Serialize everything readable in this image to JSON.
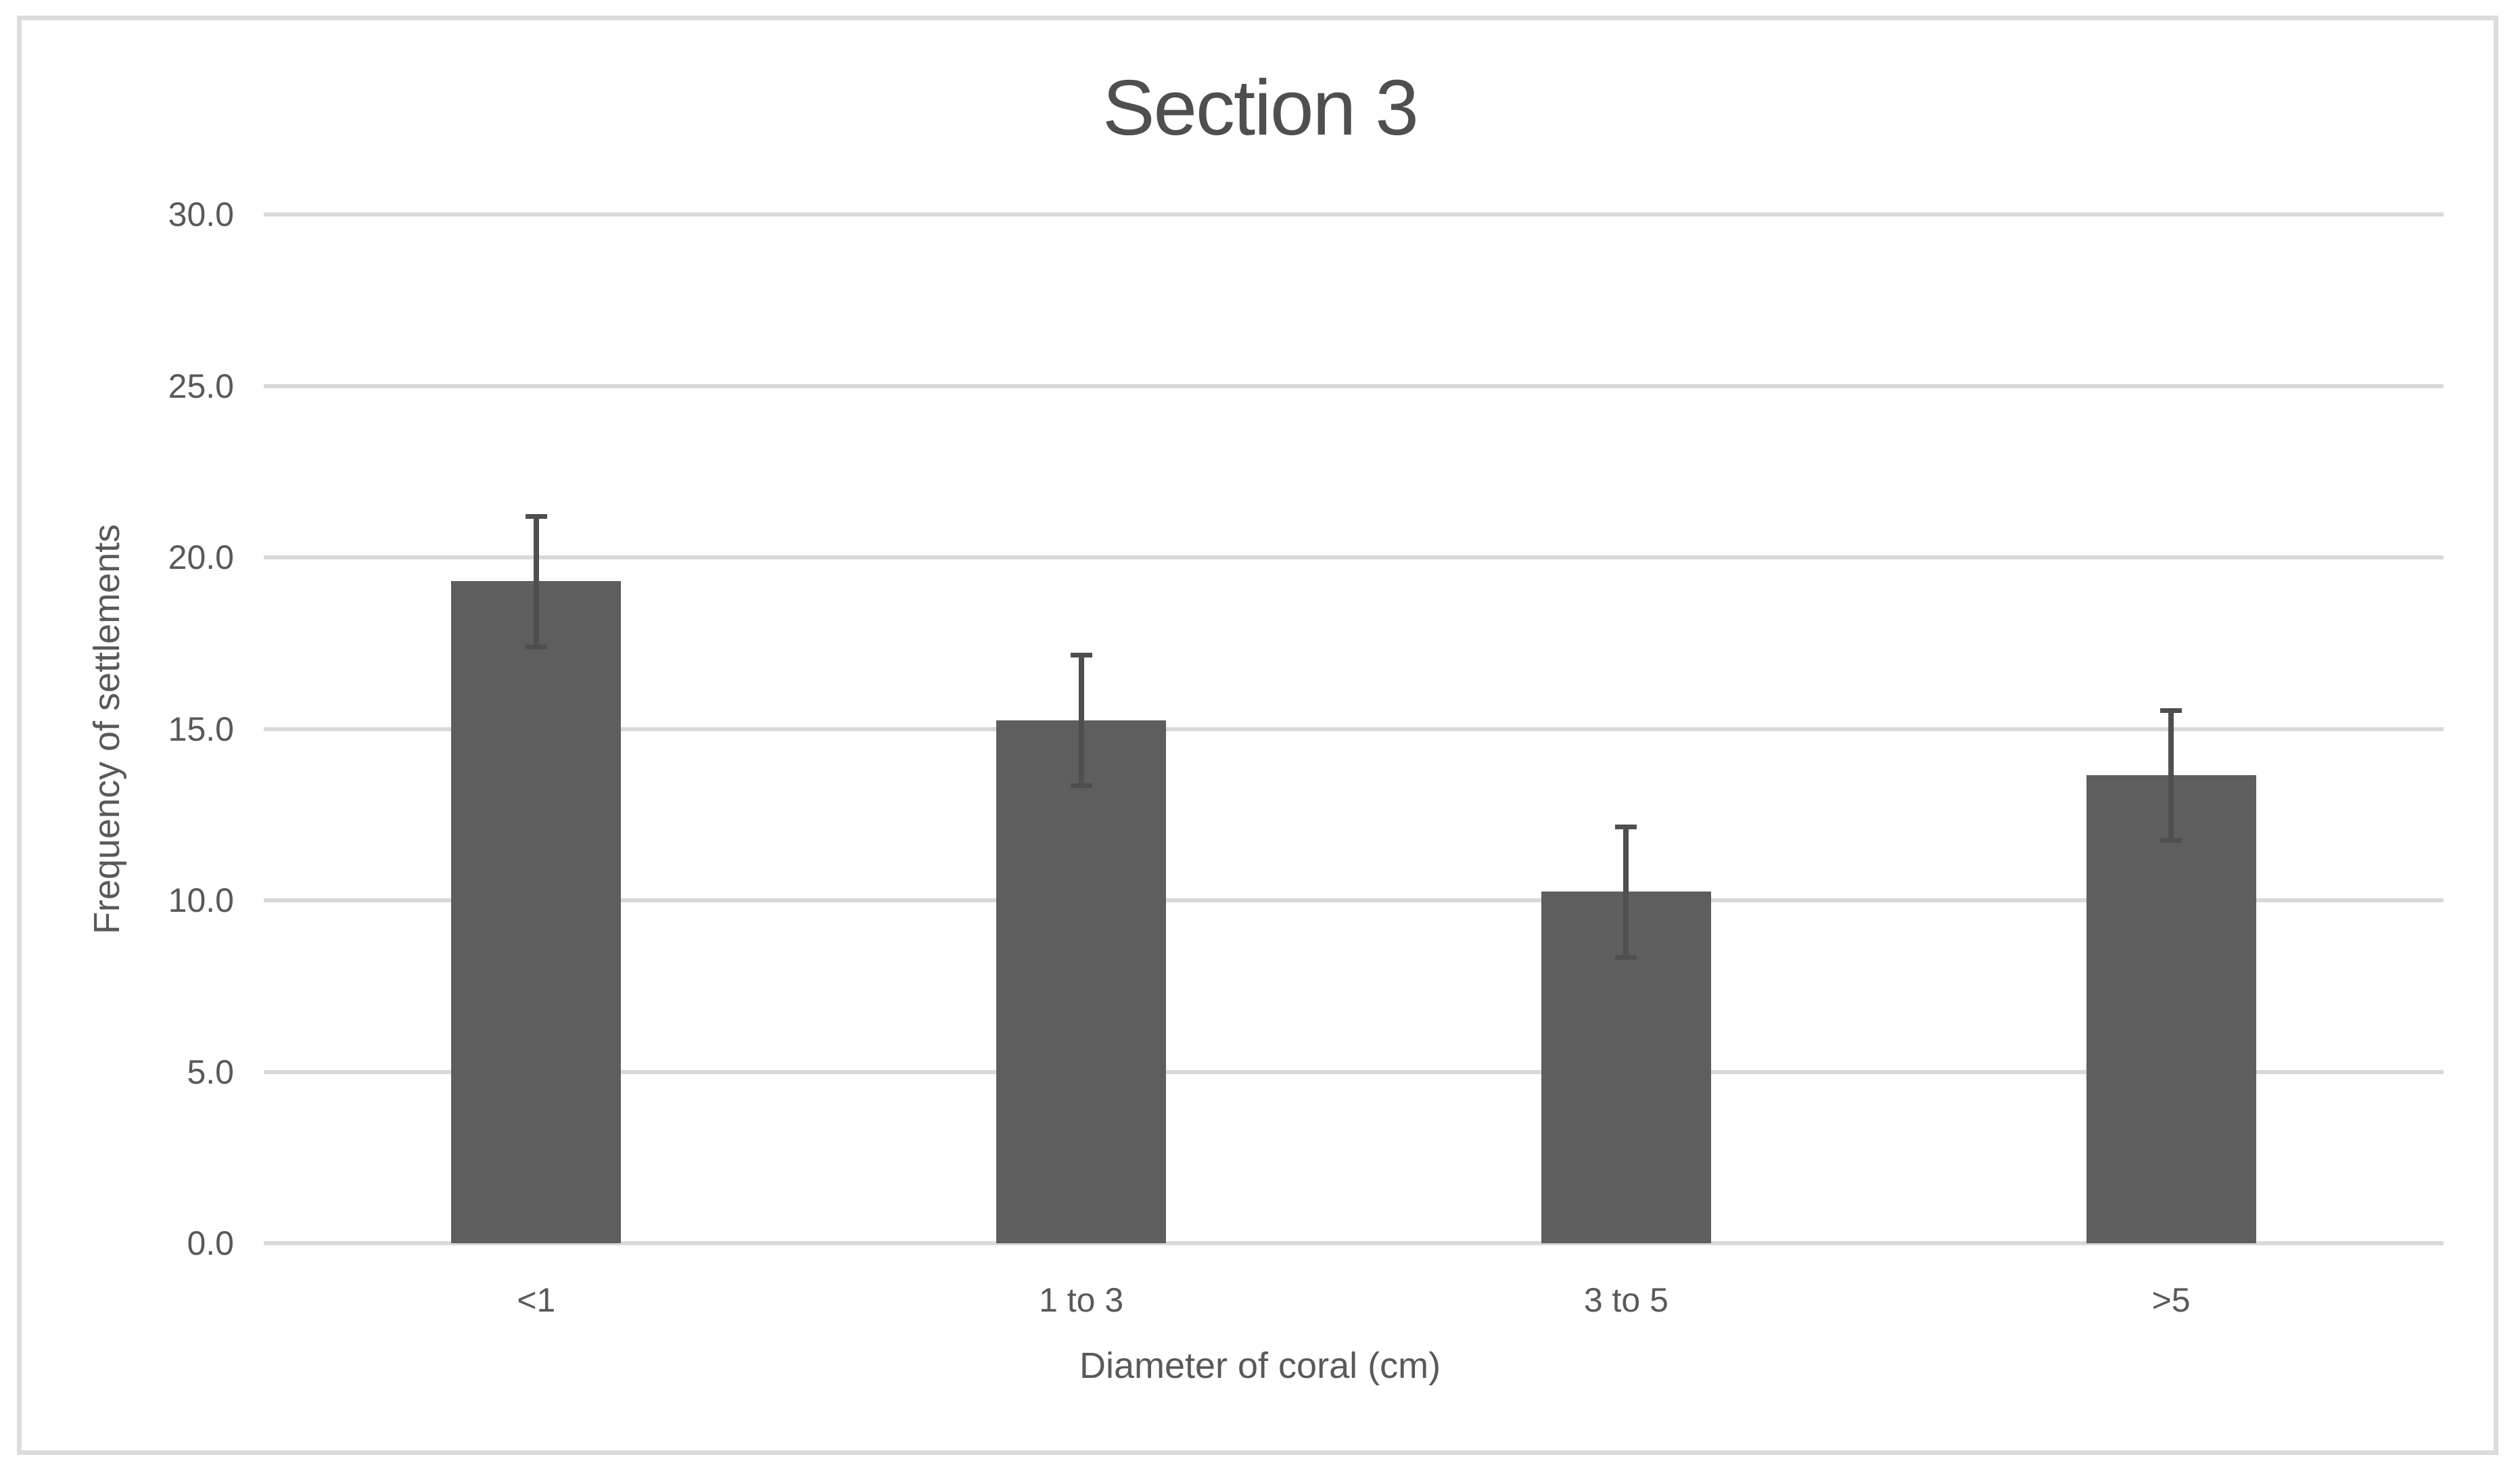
{
  "chart_data": {
    "type": "bar",
    "title": "Section 3",
    "xlabel": "Diameter of coral (cm)",
    "ylabel": "Frequency of settlements",
    "categories": [
      "<1",
      "1 to 3",
      "3 to 5",
      ">5"
    ],
    "values": [
      19.3,
      15.25,
      10.25,
      13.65
    ],
    "error_bars": [
      1.9,
      1.9,
      1.9,
      1.9
    ],
    "ylim": [
      0,
      30
    ],
    "yticks": [
      0.0,
      5.0,
      10.0,
      15.0,
      20.0,
      25.0,
      30.0
    ],
    "ytick_label_format": "one_decimal",
    "grid": "horizontal",
    "legend": "none",
    "bar_color": "#5e5e5e",
    "error_bar_color": "#4f4f4f",
    "gridline_color": "#d9d9d9",
    "axis_line_color": "#d9d9d9",
    "text_color": "#595959",
    "title_color": "#4f4f4f",
    "frame_border_color": "#dcdcdc",
    "background_color": "#ffffff"
  }
}
